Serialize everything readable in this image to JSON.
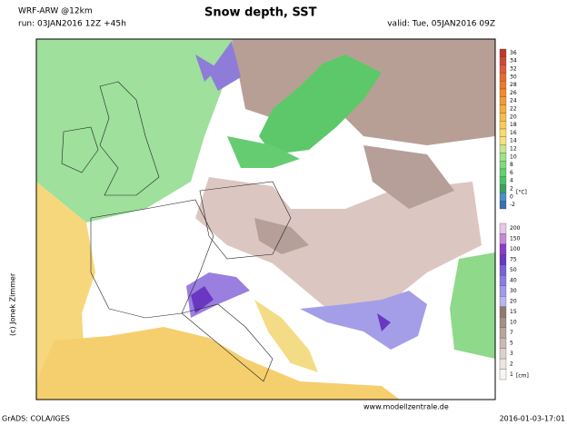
{
  "header": {
    "model": "WRF-ARW @12km",
    "run": "run: 03JAN2016 12Z +45h",
    "title": "Snow depth, SST",
    "valid": "valid: Tue, 05JAN2016 09Z"
  },
  "sst_legend": {
    "labels": [
      "36",
      "34",
      "32",
      "30",
      "28",
      "26",
      "24",
      "22",
      "20",
      "18",
      "16",
      "14",
      "12",
      "10",
      "8",
      "6",
      "4",
      "2",
      "0",
      "-2"
    ],
    "colors": [
      "#c0392b",
      "#d0473a",
      "#e05a3c",
      "#e86a30",
      "#ee7b2a",
      "#f28a2c",
      "#f59a33",
      "#f6ab3c",
      "#f7bb48",
      "#f8cc58",
      "#f9da6a",
      "#f3e27c",
      "#c8e58a",
      "#a0e08a",
      "#80d880",
      "#62cf73",
      "#46c366",
      "#3aa060",
      "#4a90c8",
      "#3a70b0"
    ],
    "unit": "[°C]"
  },
  "snow_legend": {
    "labels": [
      "200",
      "150",
      "100",
      "75",
      "50",
      "40",
      "30",
      "20",
      "15",
      "10",
      "7",
      "5",
      "3",
      "2",
      "1"
    ],
    "colors": [
      "#e6c8e6",
      "#c48ad8",
      "#8a3cc8",
      "#6a38c0",
      "#7a60d8",
      "#8c7ce0",
      "#a09ae8",
      "#b8b4f0",
      "#8f7a72",
      "#a38f87",
      "#b7a49c",
      "#cbbab3",
      "#ddd0cb",
      "#ece4e1",
      "#f8f4f2"
    ],
    "unit": "[cm]"
  },
  "footer": {
    "website": "www.modellzentrale.de",
    "credit": "GrADS: COLA/IGES",
    "timestamp": "2016-01-03-17:01",
    "copyright": "(c) Jonek Zimmer"
  }
}
